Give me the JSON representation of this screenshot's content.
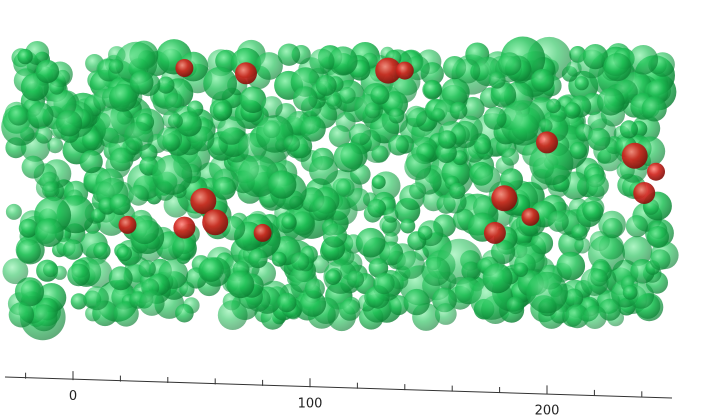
{
  "chart_data": {
    "type": "scatter",
    "title": "",
    "xlabel": "",
    "ylabel": "",
    "grid": false,
    "x_axis": {
      "ticks": [
        0,
        100,
        200
      ],
      "tick_labels": [
        "0",
        "100",
        "200"
      ],
      "minor_step": 20,
      "range": [
        -30,
        250
      ]
    },
    "series": [
      {
        "color": "#18b84a",
        "marker": "translucent-sphere",
        "count_estimate": 900,
        "x_range": [
          -25,
          250
        ],
        "role": "bulk particles"
      },
      {
        "color": "#c8201c",
        "marker": "sphere",
        "points": [
          [
            47,
            0.06
          ],
          [
            73,
            0.08
          ],
          [
            133,
            0.07
          ],
          [
            140,
            0.07
          ],
          [
            200,
            0.34
          ],
          [
            237,
            0.39
          ],
          [
            246,
            0.45
          ],
          [
            241,
            0.53
          ],
          [
            182,
            0.55
          ],
          [
            193,
            0.62
          ],
          [
            178,
            0.68
          ],
          [
            55,
            0.56
          ],
          [
            23,
            0.65
          ],
          [
            47,
            0.66
          ],
          [
            60,
            0.64
          ],
          [
            80,
            0.68
          ]
        ]
      }
    ],
    "colors": {
      "accent_green": "#18b84a",
      "accent_red": "#c8201c",
      "axis": "#333333"
    }
  }
}
